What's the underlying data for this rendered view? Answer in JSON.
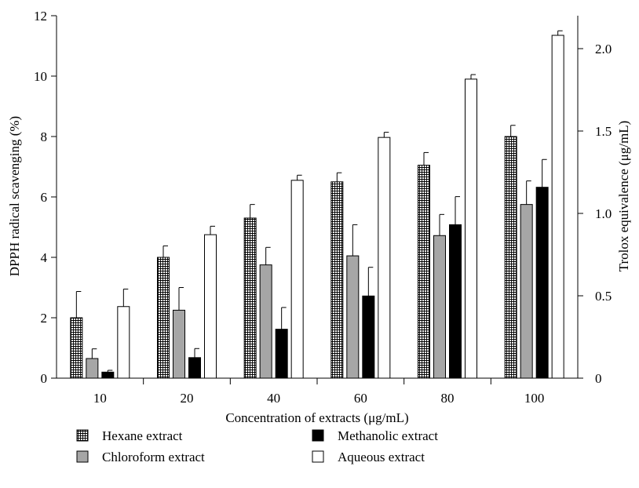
{
  "chart_data": {
    "type": "bar",
    "categories": [
      "10",
      "20",
      "40",
      "60",
      "80",
      "100"
    ],
    "xlabel": "Concentration of extracts (μg/mL)",
    "ylabel": "DPPH radical scavenging (%)",
    "y2label": "Trolox equivalence (μg/mL)",
    "ylim": [
      0,
      12
    ],
    "yticks": [
      "0",
      "2",
      "4",
      "6",
      "8",
      "10",
      "12"
    ],
    "y2lim": [
      0,
      2.2
    ],
    "y2ticks": [
      "0",
      "0.5",
      "1.0",
      "1.5",
      "2.0"
    ],
    "series": [
      {
        "name": "Hexane extract",
        "pattern": "crosshatch",
        "fill": "#ffffff",
        "values": [
          2.0,
          4.0,
          5.3,
          6.5,
          7.05,
          8.0
        ],
        "errors": [
          0.87,
          0.38,
          0.45,
          0.3,
          0.42,
          0.37
        ]
      },
      {
        "name": "Chloroform extract",
        "pattern": "solid",
        "fill": "#a6a6a6",
        "values": [
          0.65,
          2.25,
          3.75,
          4.05,
          4.72,
          5.75
        ],
        "errors": [
          0.32,
          0.75,
          0.58,
          1.03,
          0.7,
          0.78
        ]
      },
      {
        "name": "Methanolic extract",
        "pattern": "solid",
        "fill": "#000000",
        "values": [
          0.2,
          0.68,
          1.62,
          2.72,
          5.08,
          6.32
        ],
        "errors": [
          0.06,
          0.3,
          0.72,
          0.95,
          0.93,
          0.92
        ]
      },
      {
        "name": "Aqueous extract",
        "pattern": "solid",
        "fill": "#ffffff",
        "values": [
          2.37,
          4.75,
          6.55,
          7.97,
          9.9,
          11.35
        ],
        "errors": [
          0.58,
          0.28,
          0.17,
          0.17,
          0.15,
          0.15
        ]
      }
    ],
    "legend_position": "bottom",
    "grid": false
  }
}
